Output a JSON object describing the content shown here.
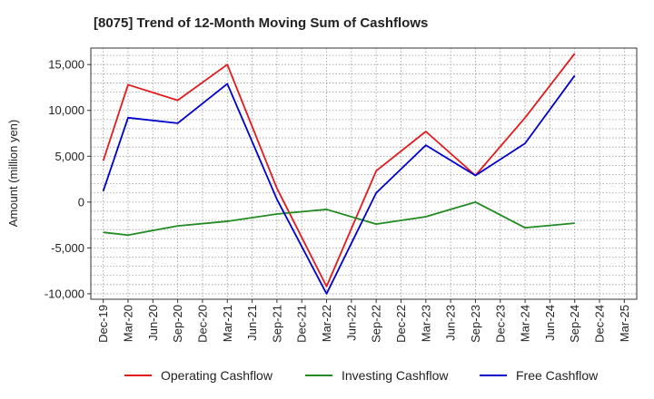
{
  "chart_data": {
    "type": "line",
    "title": "[8075]  Trend of 12-Month Moving Sum of Cashflows",
    "xlabel": "",
    "ylabel": "Amount (million yen)",
    "ylim": [
      -10600,
      16800
    ],
    "yticks": [
      -10000,
      -5000,
      0,
      5000,
      10000,
      15000
    ],
    "ytick_labels": [
      "-10,000",
      "-5,000",
      "0",
      "5,000",
      "10,000",
      "15,000"
    ],
    "categories": [
      "Dec-19",
      "Mar-20",
      "Jun-20",
      "Sep-20",
      "Dec-20",
      "Mar-21",
      "Jun-21",
      "Sep-21",
      "Dec-21",
      "Mar-22",
      "Jun-22",
      "Sep-22",
      "Dec-22",
      "Mar-23",
      "Jun-23",
      "Sep-23",
      "Dec-23",
      "Mar-24",
      "Jun-24",
      "Sep-24",
      "Dec-24",
      "Mar-25"
    ],
    "grid": true,
    "legend_position": "bottom",
    "series": [
      {
        "name": "Operating Cashflow",
        "color": "#e31a1c",
        "values": [
          4500,
          12800,
          null,
          11100,
          null,
          15000,
          null,
          1500,
          null,
          -9200,
          null,
          3400,
          null,
          7700,
          null,
          2900,
          null,
          9200,
          null,
          16200,
          null,
          null
        ]
      },
      {
        "name": "Investing Cashflow",
        "color": "#228b22",
        "values": [
          -3300,
          -3600,
          null,
          -2600,
          null,
          -2100,
          null,
          -1300,
          null,
          -800,
          null,
          -2400,
          null,
          -1600,
          null,
          0,
          null,
          -2800,
          null,
          -2300,
          null,
          null
        ]
      },
      {
        "name": "Free Cashflow",
        "color": "#0000cc",
        "values": [
          1200,
          9200,
          null,
          8600,
          null,
          12900,
          null,
          300,
          null,
          -10000,
          null,
          1000,
          null,
          6200,
          null,
          2900,
          null,
          6400,
          null,
          13800,
          null,
          null
        ]
      }
    ]
  }
}
